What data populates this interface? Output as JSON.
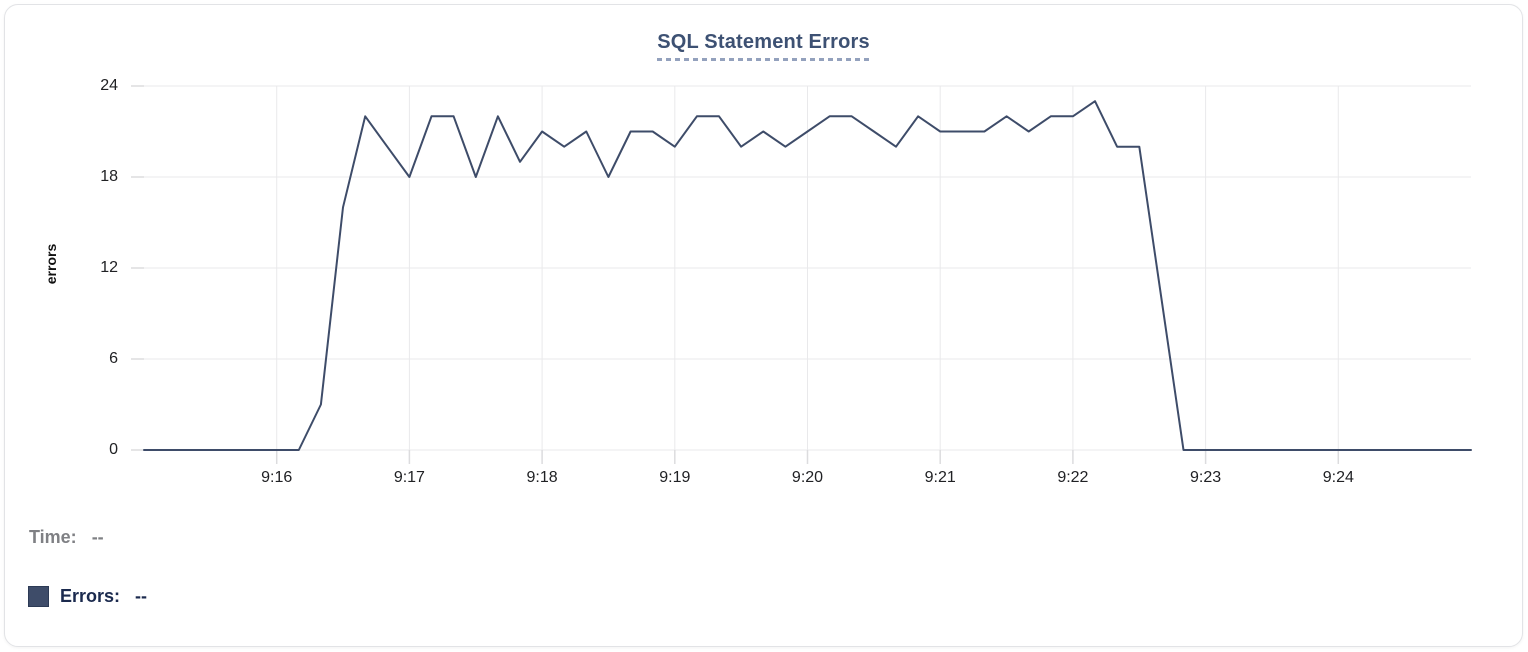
{
  "legend": {
    "time_label": "Time:",
    "time_value": "--",
    "errors_label": "Errors:",
    "errors_value": "--"
  },
  "chart_data": {
    "type": "line",
    "title": "SQL Statement Errors",
    "ylabel": "errors",
    "xlabel": "",
    "ylim": [
      0,
      24
    ],
    "y_ticks": [
      0,
      6,
      12,
      18,
      24
    ],
    "x_tick_labels": [
      "9:16",
      "9:17",
      "9:18",
      "9:19",
      "9:20",
      "9:21",
      "9:22",
      "9:23",
      "9:24"
    ],
    "x_range": [
      "9:15:00",
      "9:25:00"
    ],
    "sample_interval_seconds": 10,
    "grid": true,
    "legend_position": "bottom-left",
    "colors": {
      "line": "#3e4c69",
      "grid": "#e9e9eb",
      "tick": "#dcdcde",
      "title": "#3d5173",
      "legend_time": "#7f8084",
      "legend_errors": "#1b2a4e"
    },
    "times": [
      "9:15:00",
      "9:15:10",
      "9:15:20",
      "9:15:30",
      "9:15:40",
      "9:15:50",
      "9:16:00",
      "9:16:10",
      "9:16:20",
      "9:16:30",
      "9:16:40",
      "9:16:50",
      "9:17:00",
      "9:17:10",
      "9:17:20",
      "9:17:30",
      "9:17:40",
      "9:17:50",
      "9:18:00",
      "9:18:10",
      "9:18:20",
      "9:18:30",
      "9:18:40",
      "9:18:50",
      "9:19:00",
      "9:19:10",
      "9:19:20",
      "9:19:30",
      "9:19:40",
      "9:19:50",
      "9:20:00",
      "9:20:10",
      "9:20:20",
      "9:20:30",
      "9:20:40",
      "9:20:50",
      "9:21:00",
      "9:21:10",
      "9:21:20",
      "9:21:30",
      "9:21:40",
      "9:21:50",
      "9:22:00",
      "9:22:10",
      "9:22:20",
      "9:22:30",
      "9:22:40",
      "9:22:50",
      "9:23:00",
      "9:23:10",
      "9:23:20",
      "9:23:30",
      "9:23:40",
      "9:23:50",
      "9:24:00",
      "9:24:10",
      "9:24:20",
      "9:24:30",
      "9:24:40",
      "9:24:50",
      "9:25:00"
    ],
    "values": [
      0,
      0,
      0,
      0,
      0,
      0,
      0,
      0,
      3,
      16,
      22,
      20,
      18,
      22,
      22,
      18,
      22,
      19,
      21,
      20,
      21,
      18,
      21,
      21,
      20,
      22,
      22,
      20,
      21,
      20,
      21,
      22,
      22,
      21,
      20,
      22,
      21,
      21,
      21,
      22,
      21,
      22,
      22,
      23,
      20,
      20,
      10,
      0,
      0,
      0,
      0,
      0,
      0,
      0,
      0,
      0,
      0,
      0,
      0,
      0,
      0
    ]
  }
}
